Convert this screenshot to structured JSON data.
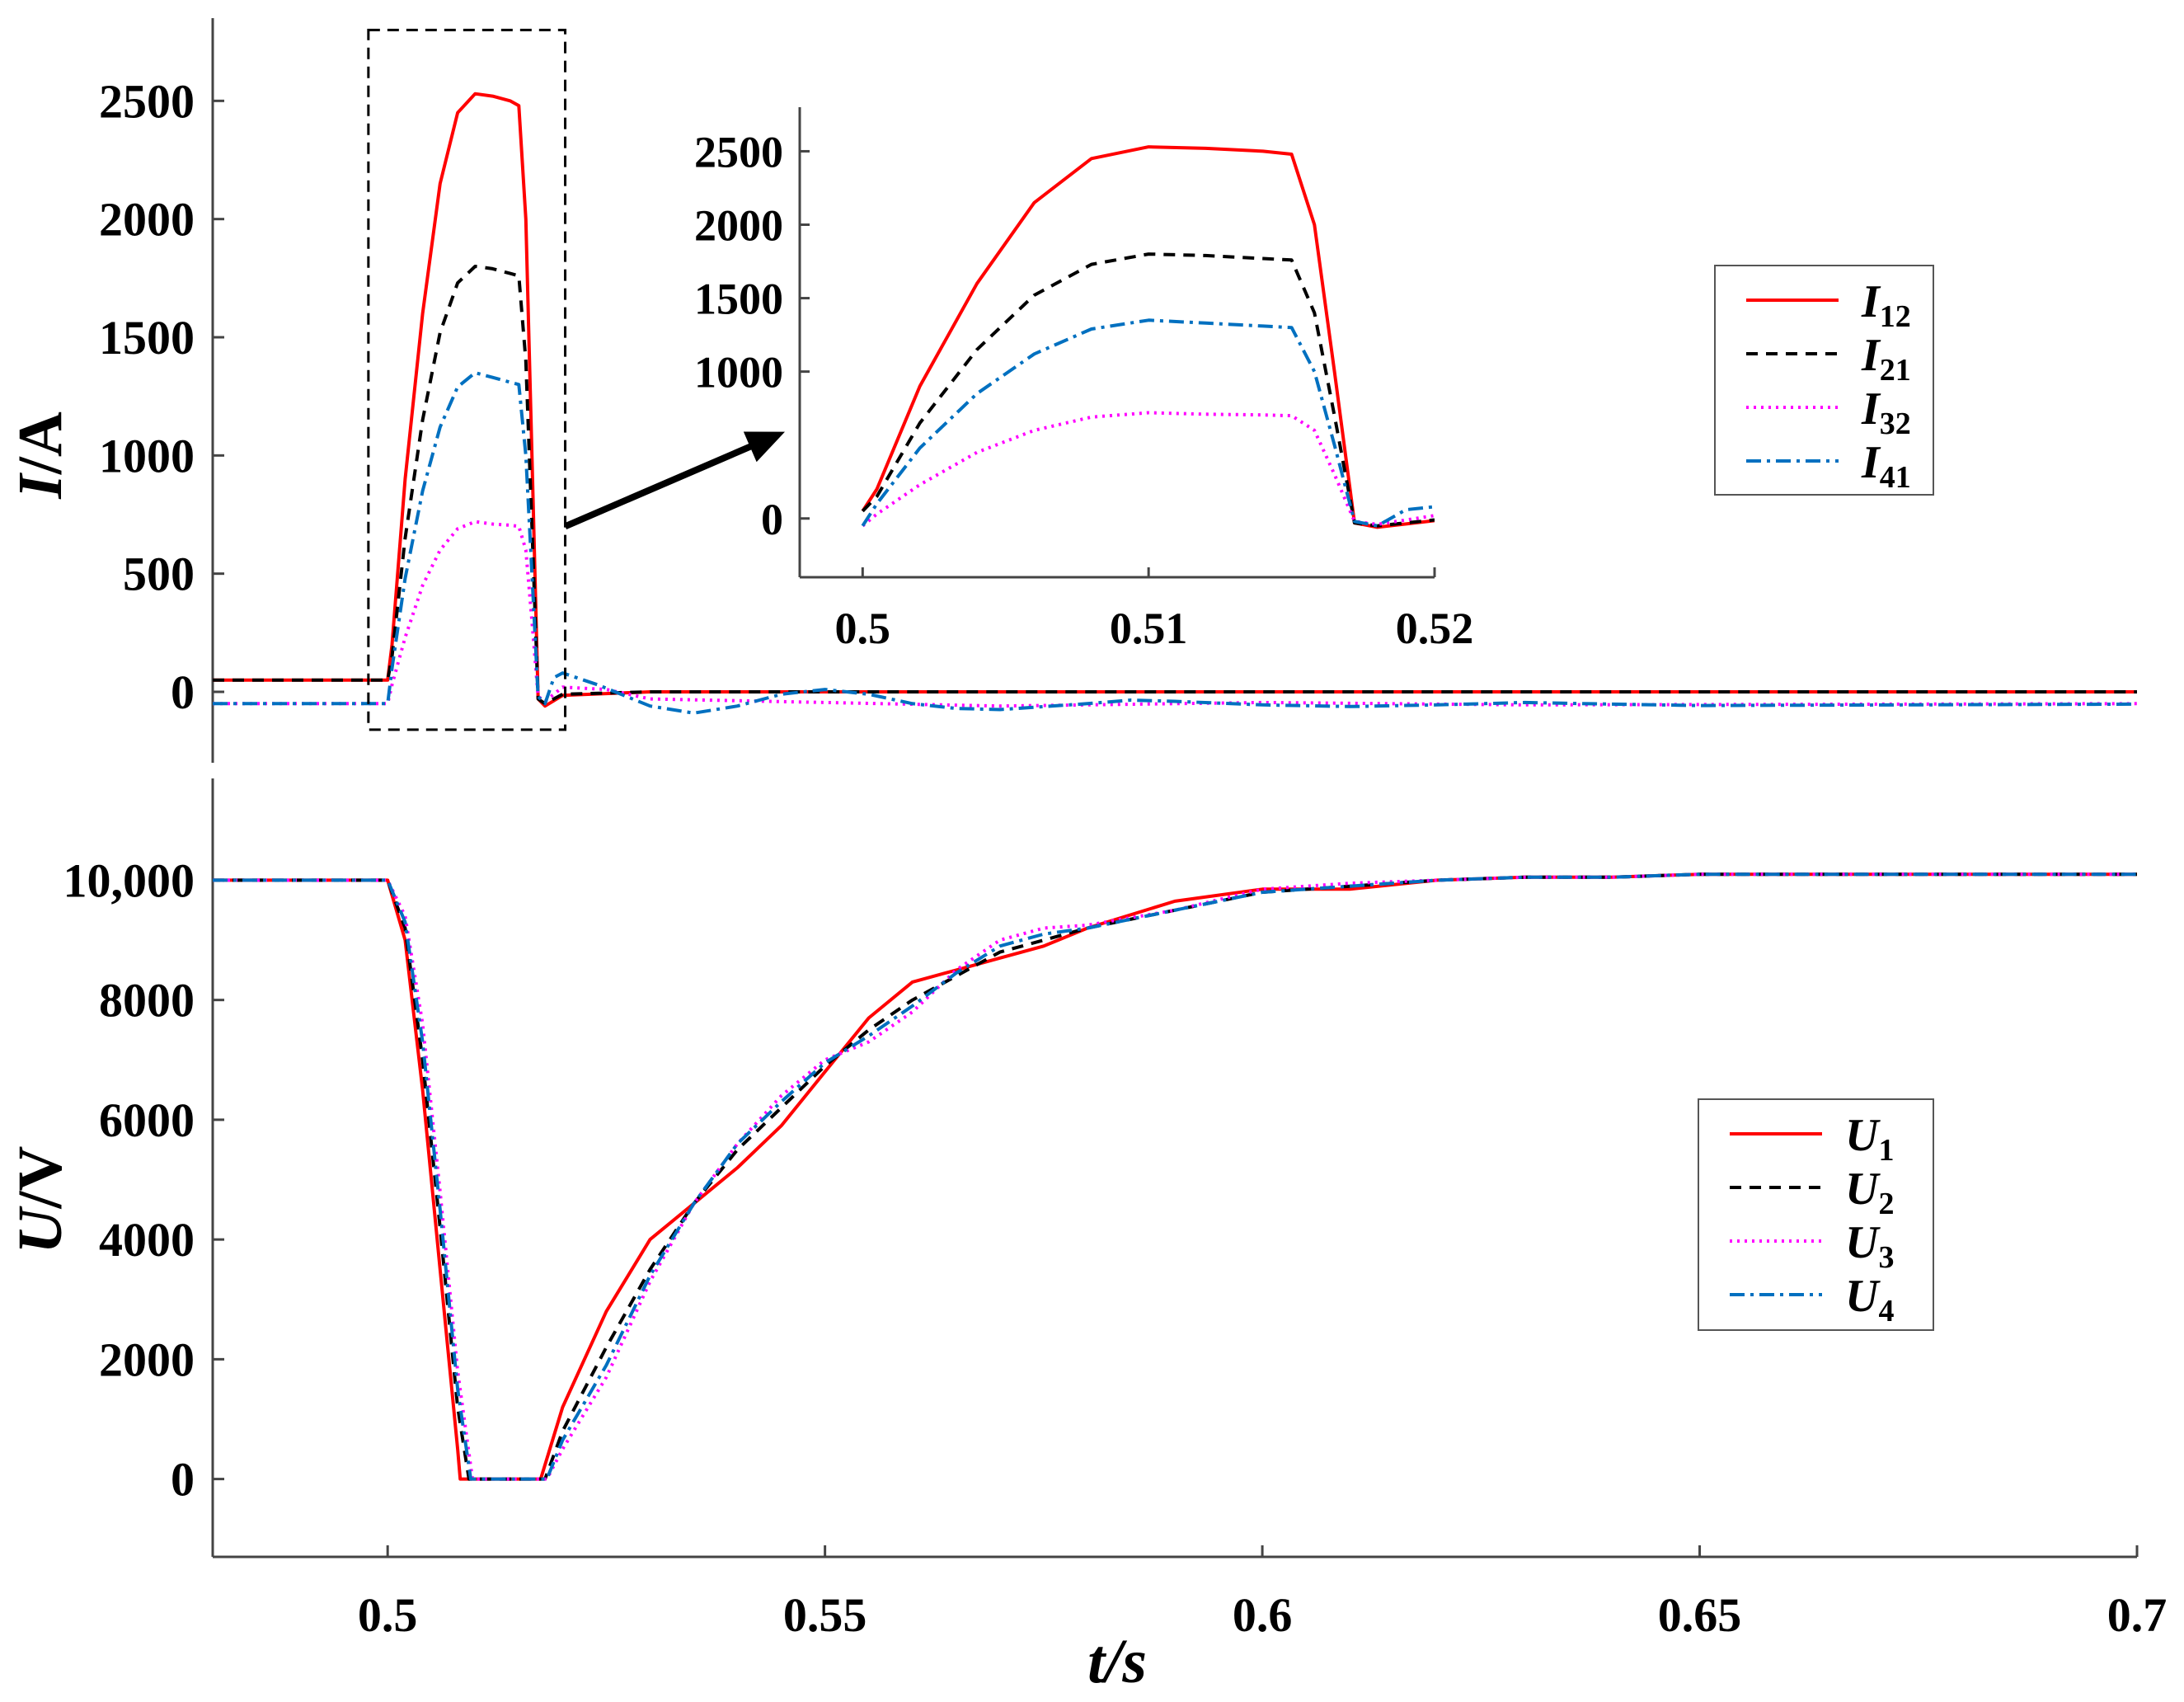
{
  "chart_data": [
    {
      "id": "current",
      "type": "line",
      "xlabel": "t/s",
      "ylabel_main": "I",
      "ylabel_unit": "/A",
      "xlim": [
        0.48,
        0.7
      ],
      "ylim": [
        -300,
        2850
      ],
      "yticks": [
        {
          "value": 0,
          "label": "0"
        },
        {
          "value": 500,
          "label": "500"
        },
        {
          "value": 1000,
          "label": "1000"
        },
        {
          "value": 1500,
          "label": "1500"
        },
        {
          "value": 2000,
          "label": "2000"
        },
        {
          "value": 2500,
          "label": "2500"
        }
      ],
      "legend_position": "right",
      "series": [
        {
          "name": "I",
          "sub": "12",
          "color": "#ff0000",
          "dash": "",
          "points": [
            [
              0.48,
              50
            ],
            [
              0.5,
              50
            ],
            [
              0.5005,
              200
            ],
            [
              0.502,
              900
            ],
            [
              0.504,
              1600
            ],
            [
              0.506,
              2150
            ],
            [
              0.508,
              2450
            ],
            [
              0.51,
              2530
            ],
            [
              0.512,
              2520
            ],
            [
              0.514,
              2500
            ],
            [
              0.515,
              2480
            ],
            [
              0.5158,
              2000
            ],
            [
              0.5165,
              1000
            ],
            [
              0.5172,
              -30
            ],
            [
              0.518,
              -60
            ],
            [
              0.52,
              -15
            ],
            [
              0.53,
              0
            ],
            [
              0.7,
              0
            ]
          ]
        },
        {
          "name": "I",
          "sub": "21",
          "color": "#000000",
          "dash": "14,10",
          "points": [
            [
              0.48,
              50
            ],
            [
              0.5,
              50
            ],
            [
              0.5005,
              150
            ],
            [
              0.502,
              650
            ],
            [
              0.504,
              1150
            ],
            [
              0.506,
              1520
            ],
            [
              0.508,
              1730
            ],
            [
              0.51,
              1800
            ],
            [
              0.512,
              1790
            ],
            [
              0.514,
              1770
            ],
            [
              0.515,
              1760
            ],
            [
              0.5158,
              1400
            ],
            [
              0.5165,
              700
            ],
            [
              0.5172,
              -30
            ],
            [
              0.518,
              -50
            ],
            [
              0.52,
              -10
            ],
            [
              0.53,
              0
            ],
            [
              0.7,
              0
            ]
          ]
        },
        {
          "name": "I",
          "sub": "32",
          "color": "#ff00ff",
          "dash": "3,6",
          "points": [
            [
              0.48,
              -50
            ],
            [
              0.5,
              -50
            ],
            [
              0.5005,
              30
            ],
            [
              0.502,
              230
            ],
            [
              0.504,
              450
            ],
            [
              0.506,
              600
            ],
            [
              0.508,
              690
            ],
            [
              0.51,
              720
            ],
            [
              0.512,
              710
            ],
            [
              0.514,
              705
            ],
            [
              0.515,
              700
            ],
            [
              0.5158,
              600
            ],
            [
              0.5165,
              300
            ],
            [
              0.5172,
              -20
            ],
            [
              0.518,
              -40
            ],
            [
              0.52,
              20
            ],
            [
              0.525,
              10
            ],
            [
              0.53,
              -30
            ],
            [
              0.55,
              -45
            ],
            [
              0.57,
              -60
            ],
            [
              0.6,
              -45
            ],
            [
              0.63,
              -55
            ],
            [
              0.7,
              -50
            ]
          ]
        },
        {
          "name": "I",
          "sub": "41",
          "color": "#0070c0",
          "dash": "18,7,4,7",
          "points": [
            [
              0.48,
              -50
            ],
            [
              0.5,
              -50
            ],
            [
              0.5005,
              100
            ],
            [
              0.502,
              480
            ],
            [
              0.504,
              850
            ],
            [
              0.506,
              1120
            ],
            [
              0.508,
              1290
            ],
            [
              0.51,
              1350
            ],
            [
              0.512,
              1330
            ],
            [
              0.514,
              1310
            ],
            [
              0.515,
              1300
            ],
            [
              0.5158,
              1000
            ],
            [
              0.5165,
              500
            ],
            [
              0.5172,
              -20
            ],
            [
              0.518,
              -50
            ],
            [
              0.519,
              60
            ],
            [
              0.52,
              80
            ],
            [
              0.524,
              30
            ],
            [
              0.53,
              -60
            ],
            [
              0.535,
              -90
            ],
            [
              0.54,
              -60
            ],
            [
              0.545,
              -10
            ],
            [
              0.55,
              10
            ],
            [
              0.555,
              -10
            ],
            [
              0.56,
              -50
            ],
            [
              0.565,
              -70
            ],
            [
              0.57,
              -75
            ],
            [
              0.58,
              -50
            ],
            [
              0.585,
              -35
            ],
            [
              0.59,
              -40
            ],
            [
              0.6,
              -55
            ],
            [
              0.61,
              -62
            ],
            [
              0.62,
              -55
            ],
            [
              0.63,
              -45
            ],
            [
              0.64,
              -52
            ],
            [
              0.65,
              -58
            ],
            [
              0.7,
              -52
            ]
          ]
        }
      ],
      "inset": {
        "xlim": [
          0.4978,
          0.52
        ],
        "ylim": [
          -400,
          2800
        ],
        "xticks": [
          {
            "value": 0.5,
            "label": "0.5"
          },
          {
            "value": 0.51,
            "label": "0.51"
          },
          {
            "value": 0.52,
            "label": "0.52"
          }
        ],
        "yticks": [
          {
            "value": 0,
            "label": "0"
          },
          {
            "value": 1000,
            "label": "1000"
          },
          {
            "value": 1500,
            "label": "1500"
          },
          {
            "value": 2000,
            "label": "2000"
          },
          {
            "value": 2500,
            "label": "2500"
          }
        ],
        "annotation": "zoom box with arrow pointing to inset"
      }
    },
    {
      "id": "voltage",
      "type": "line",
      "xlabel": "t/s",
      "ylabel_main": "U",
      "ylabel_unit": "/V",
      "xlim": [
        0.48,
        0.7
      ],
      "ylim": [
        -1300,
        11700
      ],
      "xticks": [
        {
          "value": 0.5,
          "label": "0.5"
        },
        {
          "value": 0.55,
          "label": "0.55"
        },
        {
          "value": 0.6,
          "label": "0.6"
        },
        {
          "value": 0.65,
          "label": "0.65"
        },
        {
          "value": 0.7,
          "label": "0.7"
        }
      ],
      "yticks": [
        {
          "value": 0,
          "label": "0"
        },
        {
          "value": 2000,
          "label": "2000"
        },
        {
          "value": 4000,
          "label": "4000"
        },
        {
          "value": 6000,
          "label": "6000"
        },
        {
          "value": 8000,
          "label": "8000"
        },
        {
          "value": 10000,
          "label": "10,000"
        }
      ],
      "legend_position": "right",
      "series": [
        {
          "name": "U",
          "sub": "1",
          "color": "#ff0000",
          "dash": "",
          "points": [
            [
              0.48,
              10000
            ],
            [
              0.5,
              10000
            ],
            [
              0.502,
              9000
            ],
            [
              0.504,
              6500
            ],
            [
              0.506,
              3500
            ],
            [
              0.508,
              500
            ],
            [
              0.5083,
              0
            ],
            [
              0.5175,
              0
            ],
            [
              0.52,
              1200
            ],
            [
              0.525,
              2800
            ],
            [
              0.53,
              4000
            ],
            [
              0.535,
              4600
            ],
            [
              0.54,
              5200
            ],
            [
              0.545,
              5900
            ],
            [
              0.55,
              6800
            ],
            [
              0.555,
              7700
            ],
            [
              0.56,
              8300
            ],
            [
              0.565,
              8500
            ],
            [
              0.57,
              8700
            ],
            [
              0.575,
              8900
            ],
            [
              0.58,
              9200
            ],
            [
              0.59,
              9650
            ],
            [
              0.6,
              9850
            ],
            [
              0.61,
              9850
            ],
            [
              0.62,
              10000
            ],
            [
              0.63,
              10050
            ],
            [
              0.64,
              10050
            ],
            [
              0.65,
              10100
            ],
            [
              0.66,
              10100
            ],
            [
              0.7,
              10100
            ]
          ]
        },
        {
          "name": "U",
          "sub": "2",
          "color": "#000000",
          "dash": "14,10",
          "points": [
            [
              0.48,
              10000
            ],
            [
              0.5,
              10000
            ],
            [
              0.502,
              9200
            ],
            [
              0.504,
              7000
            ],
            [
              0.506,
              4200
            ],
            [
              0.508,
              1200
            ],
            [
              0.5093,
              0
            ],
            [
              0.518,
              0
            ],
            [
              0.52,
              800
            ],
            [
              0.525,
              2200
            ],
            [
              0.53,
              3500
            ],
            [
              0.535,
              4600
            ],
            [
              0.54,
              5500
            ],
            [
              0.545,
              6200
            ],
            [
              0.55,
              6900
            ],
            [
              0.555,
              7500
            ],
            [
              0.56,
              8000
            ],
            [
              0.565,
              8400
            ],
            [
              0.57,
              8800
            ],
            [
              0.575,
              9000
            ],
            [
              0.58,
              9200
            ],
            [
              0.59,
              9500
            ],
            [
              0.6,
              9800
            ],
            [
              0.61,
              9900
            ],
            [
              0.62,
              10000
            ],
            [
              0.63,
              10050
            ],
            [
              0.64,
              10050
            ],
            [
              0.65,
              10100
            ],
            [
              0.66,
              10100
            ],
            [
              0.7,
              10100
            ]
          ]
        },
        {
          "name": "U",
          "sub": "3",
          "color": "#ff00ff",
          "dash": "3,6",
          "points": [
            [
              0.48,
              10000
            ],
            [
              0.5,
              10000
            ],
            [
              0.502,
              9400
            ],
            [
              0.504,
              7600
            ],
            [
              0.506,
              4800
            ],
            [
              0.508,
              1800
            ],
            [
              0.5097,
              0
            ],
            [
              0.5182,
              0
            ],
            [
              0.52,
              500
            ],
            [
              0.525,
              1700
            ],
            [
              0.53,
              3300
            ],
            [
              0.535,
              4600
            ],
            [
              0.54,
              5600
            ],
            [
              0.545,
              6400
            ],
            [
              0.55,
              7000
            ],
            [
              0.555,
              7300
            ],
            [
              0.56,
              7800
            ],
            [
              0.565,
              8500
            ],
            [
              0.57,
              9000
            ],
            [
              0.575,
              9200
            ],
            [
              0.58,
              9250
            ],
            [
              0.59,
              9500
            ],
            [
              0.6,
              9850
            ],
            [
              0.61,
              9950
            ],
            [
              0.62,
              10000
            ],
            [
              0.63,
              10050
            ],
            [
              0.64,
              10050
            ],
            [
              0.65,
              10100
            ],
            [
              0.66,
              10100
            ],
            [
              0.7,
              10100
            ]
          ]
        },
        {
          "name": "U",
          "sub": "4",
          "color": "#0070c0",
          "dash": "18,7,4,7",
          "points": [
            [
              0.48,
              10000
            ],
            [
              0.5,
              10000
            ],
            [
              0.502,
              9300
            ],
            [
              0.504,
              7300
            ],
            [
              0.506,
              4500
            ],
            [
              0.508,
              1500
            ],
            [
              0.5095,
              0
            ],
            [
              0.5182,
              0
            ],
            [
              0.52,
              650
            ],
            [
              0.525,
              1900
            ],
            [
              0.53,
              3400
            ],
            [
              0.535,
              4600
            ],
            [
              0.54,
              5600
            ],
            [
              0.545,
              6300
            ],
            [
              0.55,
              6950
            ],
            [
              0.555,
              7400
            ],
            [
              0.56,
              7900
            ],
            [
              0.565,
              8450
            ],
            [
              0.57,
              8900
            ],
            [
              0.575,
              9100
            ],
            [
              0.58,
              9200
            ],
            [
              0.59,
              9500
            ],
            [
              0.6,
              9800
            ],
            [
              0.61,
              9900
            ],
            [
              0.62,
              10000
            ],
            [
              0.63,
              10050
            ],
            [
              0.64,
              10050
            ],
            [
              0.65,
              10100
            ],
            [
              0.66,
              10100
            ],
            [
              0.7,
              10100
            ]
          ]
        }
      ]
    }
  ]
}
